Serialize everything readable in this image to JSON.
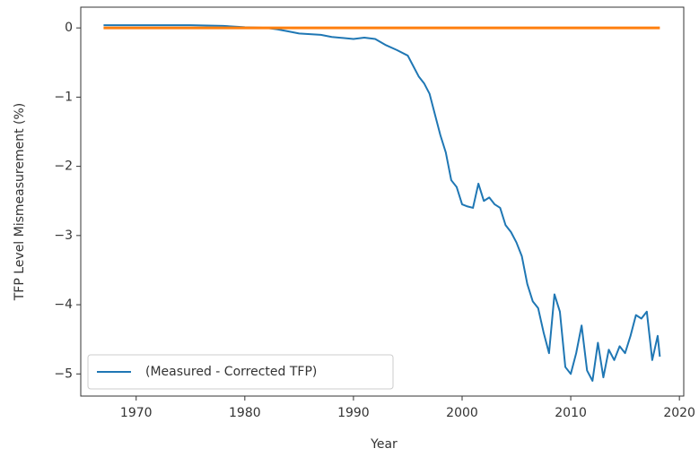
{
  "chart_data": {
    "type": "line",
    "xlabel": "Year",
    "ylabel": "TFP Level Mismeasurement (%)",
    "xlim": [
      1964.9,
      2020.4
    ],
    "ylim": [
      -5.32,
      0.3
    ],
    "xticks": [
      1970,
      1980,
      1990,
      2000,
      2010,
      2020
    ],
    "yticks": [
      {
        "value": -5,
        "label": "−5"
      },
      {
        "value": -4,
        "label": "−4"
      },
      {
        "value": -3,
        "label": "−3"
      },
      {
        "value": -2,
        "label": "−2"
      },
      {
        "value": -1,
        "label": "−1"
      },
      0
    ],
    "legend": "lower left",
    "series": [
      {
        "name": "(Measured - Corrected TFP)",
        "color": "#1f77b4",
        "x": [
          1967,
          1975,
          1978,
          1980,
          1982,
          1983,
          1984,
          1985,
          1987,
          1988,
          1990,
          1991,
          1992,
          1993,
          1994,
          1995,
          1995.5,
          1996,
          1996.5,
          1997,
          1997.5,
          1998,
          1998.5,
          1999,
          1999.5,
          2000,
          2000.5,
          2001,
          2001.5,
          2002,
          2002.5,
          2003,
          2003.5,
          2004,
          2004.5,
          2005,
          2005.5,
          2006,
          2006.5,
          2007,
          2007.5,
          2008,
          2008.5,
          2009,
          2009.5,
          2010,
          2010.5,
          2011,
          2011.5,
          2012,
          2012.5,
          2013,
          2013.5,
          2014,
          2014.5,
          2015,
          2015.5,
          2016,
          2016.5,
          2017,
          2017.5,
          2018,
          2018.2
        ],
        "values": [
          0.04,
          0.04,
          0.03,
          0.01,
          0.0,
          -0.02,
          -0.05,
          -0.08,
          -0.1,
          -0.13,
          -0.16,
          -0.14,
          -0.16,
          -0.25,
          -0.32,
          -0.4,
          -0.55,
          -0.7,
          -0.8,
          -0.95,
          -1.25,
          -1.55,
          -1.8,
          -2.2,
          -2.3,
          -2.55,
          -2.58,
          -2.6,
          -2.25,
          -2.5,
          -2.45,
          -2.55,
          -2.6,
          -2.85,
          -2.95,
          -3.1,
          -3.3,
          -3.7,
          -3.95,
          -4.05,
          -4.4,
          -4.7,
          -3.85,
          -4.1,
          -4.9,
          -5.0,
          -4.7,
          -4.3,
          -4.95,
          -5.1,
          -4.55,
          -5.05,
          -4.65,
          -4.8,
          -4.6,
          -4.7,
          -4.45,
          -4.15,
          -4.2,
          -4.1,
          -4.8,
          -4.45,
          -4.75
        ]
      },
      {
        "color": "#ff7f0e",
        "x": [
          1967,
          2018.2
        ],
        "values": [
          0,
          0
        ]
      }
    ]
  }
}
